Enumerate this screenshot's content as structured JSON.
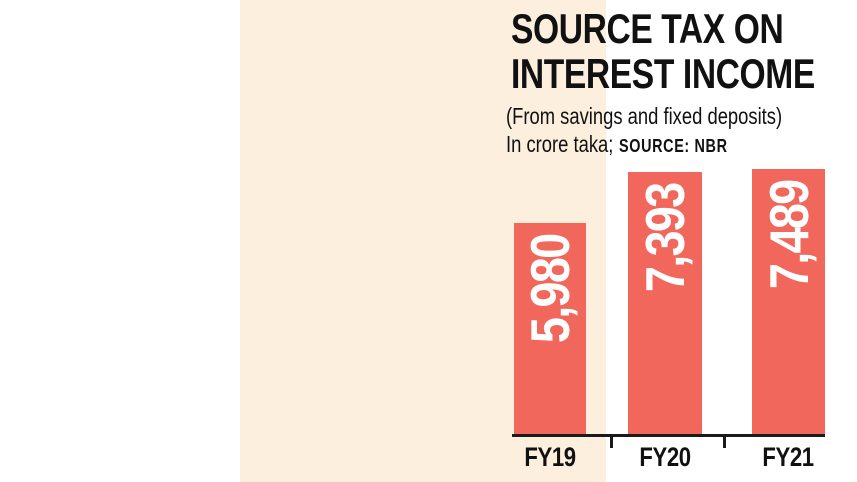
{
  "header": {
    "title_line1": "SOURCE TAX ON",
    "title_line2": "INTEREST INCOME",
    "subtitle": "(From savings and fixed deposits)",
    "unit_label": "In crore taka;",
    "source_label": "SOURCE: NBR"
  },
  "chart_data": {
    "type": "bar",
    "title": "SOURCE TAX ON INTEREST INCOME",
    "subtitle": "(From savings and fixed deposits)",
    "unit": "In crore taka",
    "source": "NBR",
    "categories": [
      "FY19",
      "FY20",
      "FY21"
    ],
    "values": [
      5980,
      7393,
      7489
    ],
    "value_labels": [
      "5,980",
      "7,393",
      "7,489"
    ],
    "xlabel": "",
    "ylabel": "",
    "ylim": [
      0,
      7489
    ],
    "grid": false,
    "legend": "none",
    "value_label_rotation": 90,
    "value_label_position": "inside-top"
  },
  "colors": {
    "page_bg": "#ffffff",
    "panel_bg": "#fcefdd",
    "bar": "#f1675c",
    "value_text": "#ffffff",
    "text": "#111111",
    "axis": "#1a1a1a"
  }
}
